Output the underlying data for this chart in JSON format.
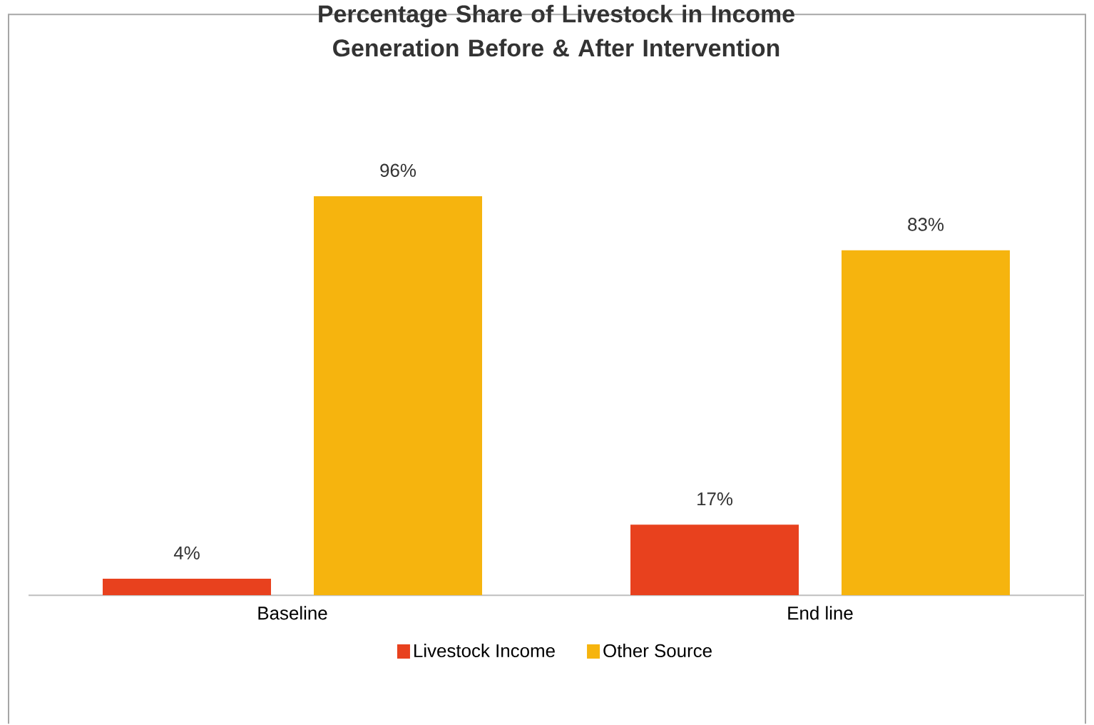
{
  "chart_data": {
    "type": "bar",
    "title": "Percentage Share of Livestock in Income Generation Before & After Intervention",
    "categories": [
      "Baseline",
      "End line"
    ],
    "series": [
      {
        "name": "Livestock Income",
        "color": "#e8411e",
        "values": [
          4,
          17
        ],
        "value_labels": [
          "4%",
          "17%"
        ]
      },
      {
        "name": "Other Source",
        "color": "#f6b40e",
        "values": [
          96,
          83
        ],
        "value_labels": [
          "96%",
          "83%"
        ]
      }
    ],
    "legend": "bottom"
  }
}
